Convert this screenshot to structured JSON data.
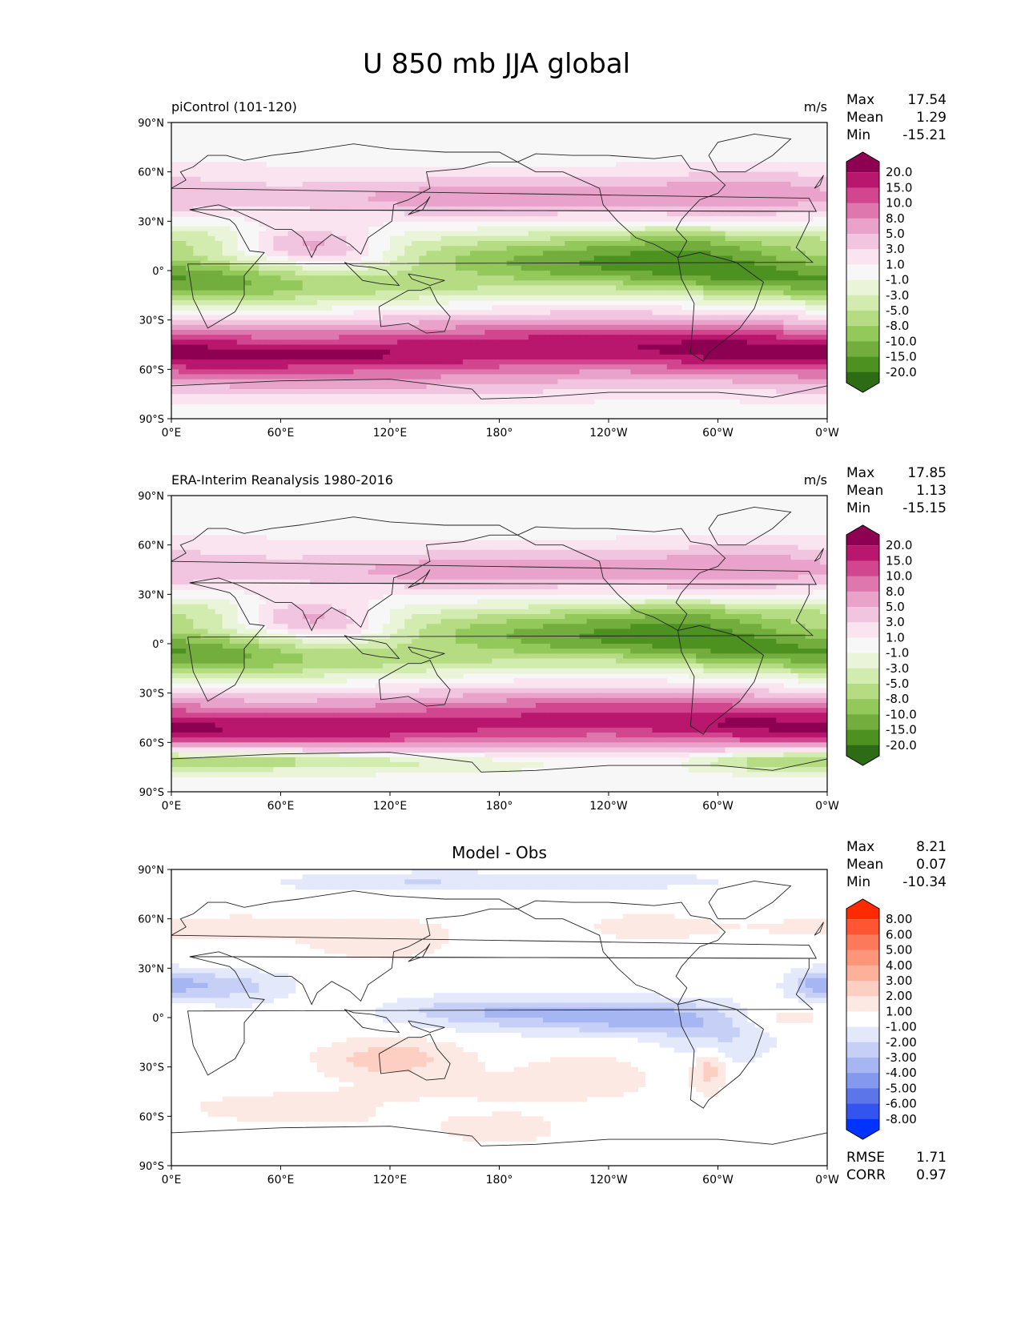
{
  "title": "U 850 mb JJA global",
  "lat_ticks": [
    "90°N",
    "60°N",
    "30°N",
    "0°",
    "30°S",
    "60°S",
    "90°S"
  ],
  "lon_ticks": [
    "0°E",
    "60°E",
    "120°E",
    "180°",
    "120°W",
    "60°W",
    "0°W"
  ],
  "stat_labels": {
    "max": "Max",
    "mean": "Mean",
    "min": "Min",
    "rmse": "RMSE",
    "corr": "CORR"
  },
  "panels": [
    {
      "id": "model",
      "left_title": "piControl (101-120)",
      "center_title": "",
      "units": "m/s",
      "stats": {
        "max": "17.54",
        "mean": "1.29",
        "min": "-15.21"
      },
      "colorbar": {
        "labels": [
          "20.0",
          "15.0",
          "10.0",
          "8.0",
          "5.0",
          "3.0",
          "1.0",
          "-1.0",
          "-3.0",
          "-5.0",
          "-8.0",
          "-10.0",
          "-15.0",
          "-20.0"
        ],
        "colors": [
          "#8e0152",
          "#b8176d",
          "#d2458f",
          "#de77ae",
          "#e9a3ca",
          "#f1c4df",
          "#f9e4f0",
          "#f7f7f7",
          "#eaf4d9",
          "#d2ecb0",
          "#b5db83",
          "#93c85b",
          "#72ad3d",
          "#4d9221",
          "#2d6c14"
        ]
      }
    },
    {
      "id": "obs",
      "left_title": "ERA-Interim Reanalysis 1980-2016",
      "center_title": "",
      "units": "m/s",
      "stats": {
        "max": "17.85",
        "mean": "1.13",
        "min": "-15.15"
      },
      "colorbar": {
        "labels": [
          "20.0",
          "15.0",
          "10.0",
          "8.0",
          "5.0",
          "3.0",
          "1.0",
          "-1.0",
          "-3.0",
          "-5.0",
          "-8.0",
          "-10.0",
          "-15.0",
          "-20.0"
        ],
        "colors": [
          "#8e0152",
          "#b8176d",
          "#d2458f",
          "#de77ae",
          "#e9a3ca",
          "#f1c4df",
          "#f9e4f0",
          "#f7f7f7",
          "#eaf4d9",
          "#d2ecb0",
          "#b5db83",
          "#93c85b",
          "#72ad3d",
          "#4d9221",
          "#2d6c14"
        ]
      }
    },
    {
      "id": "diff",
      "left_title": "",
      "center_title": "Model - Obs",
      "units": "",
      "stats": {
        "max": "8.21",
        "mean": "0.07",
        "min": "-10.34",
        "rmse": "1.71",
        "corr": "0.97"
      },
      "colorbar": {
        "labels": [
          "8.00",
          "6.00",
          "5.00",
          "4.00",
          "3.00",
          "2.00",
          "1.00",
          "-1.00",
          "-2.00",
          "-3.00",
          "-4.00",
          "-5.00",
          "-6.00",
          "-8.00"
        ],
        "colors": [
          "#ff2a00",
          "#ff5533",
          "#fb7a5c",
          "#fc957a",
          "#fdb19b",
          "#fdcfc2",
          "#fde9e3",
          "#ffffff",
          "#e3e8fb",
          "#c6d0f7",
          "#a6b6f3",
          "#8499ee",
          "#5c76ea",
          "#3454f0",
          "#0033ff"
        ]
      }
    }
  ],
  "colors": {
    "land_outline": "#222222",
    "frame": "#000000"
  }
}
